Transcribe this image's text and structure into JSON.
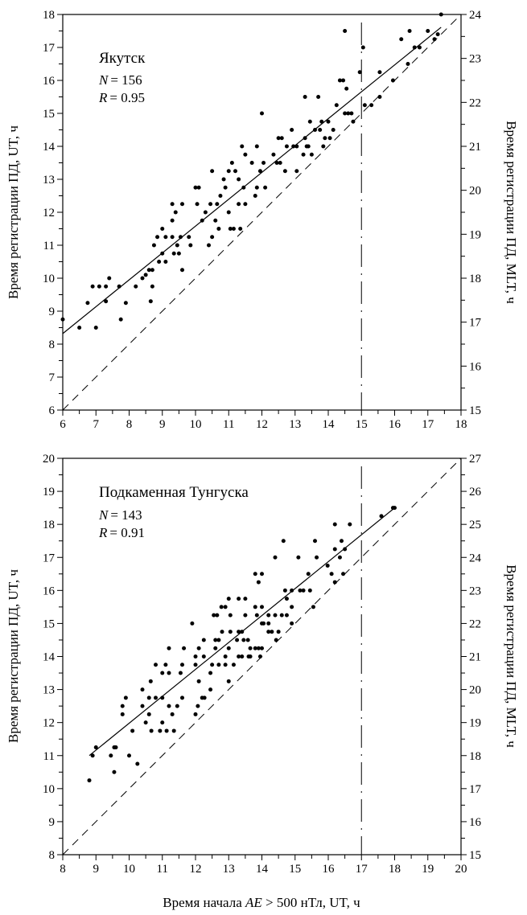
{
  "chart_data": [
    {
      "type": "scatter",
      "title": "Якутск",
      "n_label": "N",
      "n_value": "= 156",
      "r_label": "R",
      "r_value": "= 0.95",
      "ylabel": "Время регистрации ПД, UT, ч",
      "ylabel_right": "Время регистрации ПД, MLT, ч",
      "xlim": [
        6,
        18
      ],
      "ylim": [
        6,
        18
      ],
      "ylim_right": [
        15,
        24
      ],
      "xticks": [
        6,
        7,
        8,
        9,
        10,
        11,
        12,
        13,
        14,
        15,
        16,
        17,
        18
      ],
      "yticks": [
        6,
        7,
        8,
        9,
        10,
        11,
        12,
        13,
        14,
        15,
        16,
        17,
        18
      ],
      "yticks_right": [
        15,
        16,
        17,
        18,
        19,
        20,
        21,
        22,
        23,
        24
      ],
      "regression": {
        "slope": 0.815,
        "intercept": 3.43,
        "x_range": [
          6,
          17.4
        ]
      },
      "diagonal": "y = x",
      "vertical_line_x": 15,
      "grid": false,
      "points": [
        [
          6.0,
          8.75
        ],
        [
          6.5,
          8.5
        ],
        [
          6.75,
          9.25
        ],
        [
          6.9,
          9.75
        ],
        [
          7.0,
          8.5
        ],
        [
          7.1,
          9.75
        ],
        [
          7.3,
          9.75
        ],
        [
          7.3,
          9.3
        ],
        [
          7.4,
          10
        ],
        [
          7.7,
          9.75
        ],
        [
          7.75,
          8.75
        ],
        [
          7.9,
          9.25
        ],
        [
          8.2,
          9.75
        ],
        [
          8.4,
          10
        ],
        [
          8.5,
          10.1
        ],
        [
          8.6,
          10.25
        ],
        [
          8.7,
          10.25
        ],
        [
          8.65,
          9.3
        ],
        [
          8.7,
          9.75
        ],
        [
          8.75,
          11
        ],
        [
          8.85,
          11.25
        ],
        [
          8.9,
          10.5
        ],
        [
          9.0,
          11.5
        ],
        [
          9.0,
          10.75
        ],
        [
          9.1,
          11.25
        ],
        [
          9.1,
          10.5
        ],
        [
          9.3,
          11.25
        ],
        [
          9.3,
          11.75
        ],
        [
          9.3,
          12.25
        ],
        [
          9.35,
          10.75
        ],
        [
          9.4,
          12
        ],
        [
          9.45,
          11
        ],
        [
          9.5,
          10.75
        ],
        [
          9.55,
          11.25
        ],
        [
          9.6,
          12.25
        ],
        [
          9.6,
          10.25
        ],
        [
          9.8,
          11.25
        ],
        [
          9.85,
          11
        ],
        [
          10.0,
          12.75
        ],
        [
          10.1,
          12.75
        ],
        [
          10.05,
          12.25
        ],
        [
          10.2,
          11.75
        ],
        [
          10.3,
          12
        ],
        [
          10.4,
          11
        ],
        [
          10.45,
          12.25
        ],
        [
          10.5,
          11.25
        ],
        [
          10.5,
          13.25
        ],
        [
          10.6,
          11.75
        ],
        [
          10.65,
          12.25
        ],
        [
          10.7,
          11.5
        ],
        [
          10.75,
          12.5
        ],
        [
          10.85,
          13
        ],
        [
          10.9,
          12.75
        ],
        [
          11.0,
          13.25
        ],
        [
          11.0,
          12
        ],
        [
          11.05,
          11.5
        ],
        [
          11.1,
          13.5
        ],
        [
          11.15,
          11.5
        ],
        [
          11.2,
          13.25
        ],
        [
          11.3,
          12.25
        ],
        [
          11.3,
          13
        ],
        [
          11.35,
          11.5
        ],
        [
          11.4,
          14
        ],
        [
          11.45,
          12.75
        ],
        [
          11.5,
          13.75
        ],
        [
          11.5,
          12.25
        ],
        [
          11.7,
          13.5
        ],
        [
          11.8,
          12.5
        ],
        [
          11.85,
          14
        ],
        [
          11.85,
          12.75
        ],
        [
          11.95,
          13.25
        ],
        [
          12.0,
          15
        ],
        [
          12.05,
          13.5
        ],
        [
          12.1,
          12.75
        ],
        [
          12.35,
          13.75
        ],
        [
          12.45,
          13.5
        ],
        [
          12.5,
          14.25
        ],
        [
          12.55,
          13.5
        ],
        [
          12.6,
          14.25
        ],
        [
          12.7,
          13.25
        ],
        [
          12.75,
          14
        ],
        [
          12.9,
          14.5
        ],
        [
          12.95,
          14
        ],
        [
          13.05,
          13.25
        ],
        [
          13.05,
          14
        ],
        [
          13.25,
          13.75
        ],
        [
          13.3,
          14.25
        ],
        [
          13.3,
          15.5
        ],
        [
          13.35,
          14
        ],
        [
          13.4,
          14
        ],
        [
          13.45,
          14.75
        ],
        [
          13.5,
          13.75
        ],
        [
          13.6,
          14.5
        ],
        [
          13.7,
          15.5
        ],
        [
          13.75,
          14.5
        ],
        [
          13.8,
          14.75
        ],
        [
          13.85,
          14
        ],
        [
          13.9,
          14.25
        ],
        [
          14.0,
          14.75
        ],
        [
          14.05,
          14.25
        ],
        [
          14.15,
          14.5
        ],
        [
          14.25,
          15.25
        ],
        [
          14.35,
          16
        ],
        [
          14.45,
          16
        ],
        [
          14.5,
          17.5
        ],
        [
          14.5,
          15
        ],
        [
          14.55,
          15.75
        ],
        [
          14.6,
          15
        ],
        [
          14.7,
          15
        ],
        [
          14.75,
          14.75
        ],
        [
          14.95,
          16.25
        ],
        [
          15.05,
          17
        ],
        [
          15.1,
          15.25
        ],
        [
          15.3,
          15.25
        ],
        [
          15.55,
          15.5
        ],
        [
          15.55,
          16.25
        ],
        [
          15.95,
          16
        ],
        [
          16.2,
          17.25
        ],
        [
          16.4,
          16.5
        ],
        [
          16.45,
          17.5
        ],
        [
          16.6,
          17
        ],
        [
          16.75,
          17
        ],
        [
          17.0,
          17.5
        ],
        [
          17.2,
          17.25
        ],
        [
          17.3,
          17.4
        ],
        [
          17.4,
          18
        ]
      ]
    },
    {
      "type": "scatter",
      "title": "Подкаменная Тунгуска",
      "n_label": "N",
      "n_value": "= 143",
      "r_label": "R",
      "r_value": "= 0.91",
      "ylabel": "Время регистрации ПД, UT, ч",
      "ylabel_right": "Время регистрации ПД, MLT, ч",
      "xlabel_pre": "Время начала ",
      "xlabel_italic": "AE",
      "xlabel_post": " > 500 нТл, UT, ч",
      "xlim": [
        8,
        20
      ],
      "ylim": [
        8,
        20
      ],
      "ylim_right": [
        15,
        27
      ],
      "xticks": [
        8,
        9,
        10,
        11,
        12,
        13,
        14,
        15,
        16,
        17,
        18,
        19,
        20
      ],
      "yticks": [
        8,
        9,
        10,
        11,
        12,
        13,
        14,
        15,
        16,
        17,
        18,
        19,
        20
      ],
      "yticks_right": [
        15,
        16,
        17,
        18,
        19,
        20,
        21,
        22,
        23,
        24,
        25,
        26,
        27
      ],
      "regression": {
        "slope": 0.815,
        "intercept": 3.83,
        "x_range": [
          8.8,
          18
        ]
      },
      "diagonal": "y = x",
      "vertical_line_x": 17,
      "grid": false,
      "points": [
        [
          8.8,
          10.25
        ],
        [
          8.9,
          11.0
        ],
        [
          9.0,
          11.25
        ],
        [
          9.45,
          11.0
        ],
        [
          9.55,
          11.25
        ],
        [
          9.6,
          11.25
        ],
        [
          9.55,
          10.5
        ],
        [
          10.0,
          11.0
        ],
        [
          10.25,
          10.75
        ],
        [
          9.8,
          12.5
        ],
        [
          9.8,
          12.25
        ],
        [
          9.9,
          12.75
        ],
        [
          10.1,
          11.75
        ],
        [
          10.4,
          12.5
        ],
        [
          10.4,
          13.0
        ],
        [
          10.65,
          13.25
        ],
        [
          10.5,
          12.0
        ],
        [
          10.6,
          12.25
        ],
        [
          10.6,
          12.75
        ],
        [
          10.8,
          12.75
        ],
        [
          11.0,
          12.75
        ],
        [
          10.67,
          11.75
        ],
        [
          10.93,
          11.75
        ],
        [
          11.13,
          11.75
        ],
        [
          11.35,
          11.75
        ],
        [
          11.0,
          12.0
        ],
        [
          10.8,
          13.75
        ],
        [
          11.1,
          13.75
        ],
        [
          11.0,
          13.5
        ],
        [
          11.2,
          13.5
        ],
        [
          11.2,
          14.25
        ],
        [
          11.2,
          12.5
        ],
        [
          11.45,
          12.5
        ],
        [
          11.3,
          12.25
        ],
        [
          11.55,
          13.5
        ],
        [
          11.6,
          13.75
        ],
        [
          11.65,
          14.25
        ],
        [
          11.6,
          12.75
        ],
        [
          11.9,
          15.0
        ],
        [
          12.0,
          13.75
        ],
        [
          12.0,
          14.0
        ],
        [
          12.1,
          14.25
        ],
        [
          12.1,
          13.25
        ],
        [
          12.07,
          12.5
        ],
        [
          12.0,
          12.25
        ],
        [
          12.2,
          12.75
        ],
        [
          12.27,
          12.75
        ],
        [
          12.25,
          14.0
        ],
        [
          12.25,
          14.5
        ],
        [
          12.45,
          13.0
        ],
        [
          12.45,
          13.5
        ],
        [
          12.5,
          13.75
        ],
        [
          12.55,
          15.25
        ],
        [
          12.65,
          15.25
        ],
        [
          12.6,
          14.5
        ],
        [
          12.7,
          14.5
        ],
        [
          12.6,
          14.25
        ],
        [
          12.7,
          13.75
        ],
        [
          12.9,
          13.75
        ],
        [
          13.15,
          13.75
        ],
        [
          12.78,
          15.5
        ],
        [
          12.9,
          15.5
        ],
        [
          12.9,
          14.0
        ],
        [
          12.8,
          14.75
        ],
        [
          13.05,
          14.75
        ],
        [
          13.0,
          14.25
        ],
        [
          13.0,
          13.25
        ],
        [
          13.05,
          15.25
        ],
        [
          13.0,
          15.75
        ],
        [
          13.3,
          15.75
        ],
        [
          13.5,
          15.75
        ],
        [
          13.3,
          14.0
        ],
        [
          13.4,
          14.0
        ],
        [
          13.3,
          14.75
        ],
        [
          13.4,
          14.75
        ],
        [
          13.25,
          14.5
        ],
        [
          13.45,
          14.5
        ],
        [
          13.58,
          14.5
        ],
        [
          13.5,
          15.25
        ],
        [
          13.6,
          14.0
        ],
        [
          13.65,
          14.0
        ],
        [
          13.65,
          14.25
        ],
        [
          13.8,
          14.25
        ],
        [
          13.9,
          14.25
        ],
        [
          13.8,
          15.5
        ],
        [
          14.0,
          15.5
        ],
        [
          13.8,
          16.5
        ],
        [
          14.0,
          16.5
        ],
        [
          13.9,
          16.25
        ],
        [
          13.85,
          15.25
        ],
        [
          13.95,
          14.0
        ],
        [
          14.0,
          15.0
        ],
        [
          14.05,
          15.0
        ],
        [
          14.2,
          15.0
        ],
        [
          14.2,
          15.25
        ],
        [
          14.4,
          15.25
        ],
        [
          14.6,
          15.25
        ],
        [
          14.75,
          15.25
        ],
        [
          14.2,
          14.75
        ],
        [
          14.3,
          14.75
        ],
        [
          14.5,
          14.75
        ],
        [
          14.43,
          14.5
        ],
        [
          14.0,
          14.25
        ],
        [
          14.4,
          17.0
        ],
        [
          14.65,
          17.5
        ],
        [
          14.7,
          16.0
        ],
        [
          14.9,
          16.0
        ],
        [
          14.75,
          15.75
        ],
        [
          14.9,
          15.5
        ],
        [
          14.9,
          15.0
        ],
        [
          15.1,
          17.0
        ],
        [
          15.15,
          16.0
        ],
        [
          15.25,
          16.0
        ],
        [
          15.45,
          16.0
        ],
        [
          15.4,
          16.5
        ],
        [
          15.55,
          15.5
        ],
        [
          15.6,
          17.5
        ],
        [
          15.65,
          17.0
        ],
        [
          15.98,
          16.75
        ],
        [
          16.1,
          16.5
        ],
        [
          16.2,
          18.0
        ],
        [
          16.2,
          17.25
        ],
        [
          16.2,
          16.25
        ],
        [
          16.35,
          17.0
        ],
        [
          16.4,
          17.5
        ],
        [
          16.45,
          16.5
        ],
        [
          16.5,
          17.25
        ],
        [
          16.65,
          18.0
        ],
        [
          17.6,
          18.25
        ],
        [
          17.95,
          18.5
        ],
        [
          18.0,
          18.5
        ]
      ]
    }
  ]
}
